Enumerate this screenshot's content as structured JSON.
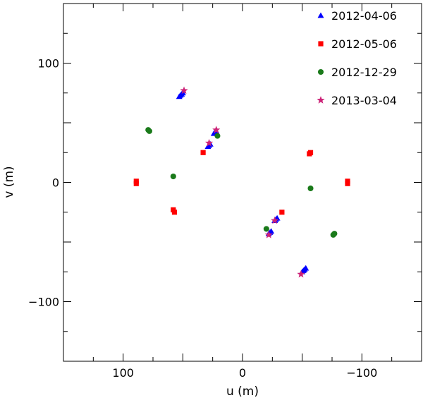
{
  "chart_data": {
    "type": "scatter",
    "title": "",
    "xlabel": "u (m)",
    "ylabel": "v (m)",
    "xlim": [
      150,
      -150
    ],
    "ylim": [
      -150,
      150
    ],
    "x_ticks": [
      100,
      0,
      -100
    ],
    "y_ticks": [
      100,
      0,
      -100
    ],
    "x_tick_labels": [
      "100",
      "0",
      "−100"
    ],
    "y_tick_labels": [
      "100",
      "0",
      "−100"
    ],
    "grid": false,
    "legend_position": "top-right",
    "series": [
      {
        "name": "2012-04-06",
        "marker": "triangle",
        "color": "#0000ff",
        "points": [
          [
            53,
            72
          ],
          [
            52,
            73
          ],
          [
            51,
            74
          ],
          [
            50,
            75
          ],
          [
            -53,
            -72
          ],
          [
            -52,
            -73
          ],
          [
            -51,
            -74
          ],
          [
            -50,
            -75
          ],
          [
            24,
            41
          ],
          [
            23,
            42
          ],
          [
            22,
            43
          ],
          [
            -24,
            -41
          ],
          [
            -23,
            -42
          ],
          [
            -22,
            -43
          ],
          [
            29,
            30
          ],
          [
            28,
            31
          ],
          [
            27,
            32
          ],
          [
            -29,
            -30
          ],
          [
            -28,
            -31
          ],
          [
            -27,
            -32
          ]
        ]
      },
      {
        "name": "2012-05-06",
        "marker": "square",
        "color": "#ff0000",
        "points": [
          [
            89,
            -1
          ],
          [
            89,
            1
          ],
          [
            -88,
            -1
          ],
          [
            -88,
            1
          ],
          [
            57,
            -25
          ],
          [
            58,
            -23
          ],
          [
            -57,
            25
          ],
          [
            -56,
            24
          ],
          [
            33,
            25
          ],
          [
            -33,
            -25
          ]
        ]
      },
      {
        "name": "2012-12-29",
        "marker": "circle",
        "color": "#1a7a1a",
        "points": [
          [
            78,
            43
          ],
          [
            79,
            44
          ],
          [
            -76,
            -44
          ],
          [
            -77,
            -43
          ],
          [
            58,
            5
          ],
          [
            -57,
            -5
          ],
          [
            21,
            39
          ],
          [
            -20,
            -39
          ]
        ]
      },
      {
        "name": "2013-03-04",
        "marker": "star",
        "color": "#cc2277",
        "points": [
          [
            49,
            77
          ],
          [
            -49,
            -77
          ],
          [
            22,
            44
          ],
          [
            -22,
            -44
          ],
          [
            28,
            33
          ],
          [
            -27,
            -32
          ]
        ]
      }
    ]
  }
}
